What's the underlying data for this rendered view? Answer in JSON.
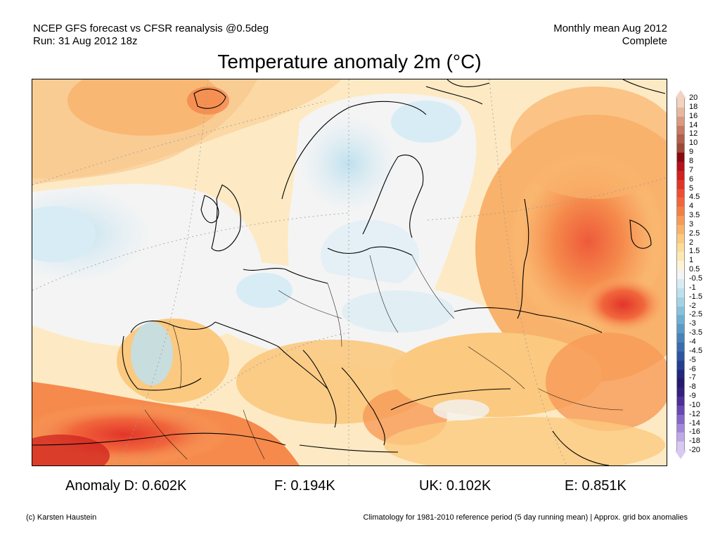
{
  "header": {
    "line1_left": "NCEP GFS forecast vs CFSR reanalysis @0.5deg",
    "line2_left": "Run: 31 Aug 2012 18z",
    "line1_right": "Monthly mean Aug 2012",
    "line2_right": "Complete"
  },
  "title": "Temperature anomaly 2m (°C)",
  "legend": {
    "labels": [
      "20",
      "18",
      "16",
      "14",
      "12",
      "10",
      "9",
      "8",
      "7",
      "6",
      "5",
      "4.5",
      "4",
      "3.5",
      "3",
      "2.5",
      "2",
      "1.5",
      "1",
      "0.5",
      "-0.5",
      "-1",
      "-1.5",
      "-2",
      "-2.5",
      "-3",
      "-3.5",
      "-4",
      "-4.5",
      "-5",
      "-6",
      "-7",
      "-8",
      "-9",
      "-10",
      "-12",
      "-14",
      "-16",
      "-18",
      "-20"
    ],
    "colors": [
      "#f3d2c2",
      "#e8b79e",
      "#d99a7f",
      "#c67b62",
      "#b2604b",
      "#9d4a38",
      "#8a0a12",
      "#b5121b",
      "#d0231f",
      "#e2352a",
      "#ee4f33",
      "#f1673c",
      "#f47f45",
      "#f79a57",
      "#f9b26b",
      "#fbc97f",
      "#fcdc97",
      "#fde8b4",
      "#fdf3d6",
      "#f4f4f4",
      "#d8ecf5",
      "#bee0ee",
      "#a3d2e6",
      "#86c2de",
      "#6fb0d2",
      "#5a9bc6",
      "#4783ba",
      "#3a6cae",
      "#2e56a0",
      "#253f8e",
      "#21287b",
      "#261a6d",
      "#33207f",
      "#4d2f98",
      "#6848b2",
      "#8566c8",
      "#a387d9",
      "#bfa8e8",
      "#d8c9f3"
    ]
  },
  "stats": [
    {
      "label": "Anomaly D: 0.602K"
    },
    {
      "label": "F: 0.194K"
    },
    {
      "label": "UK: 0.102K"
    },
    {
      "label": "E: 0.851K"
    }
  ],
  "footer": {
    "left": "(c) Karsten Haustein",
    "right": "Climatology for 1981-2010 reference period (5 day running mean) | Approx. grid box anomalies"
  }
}
